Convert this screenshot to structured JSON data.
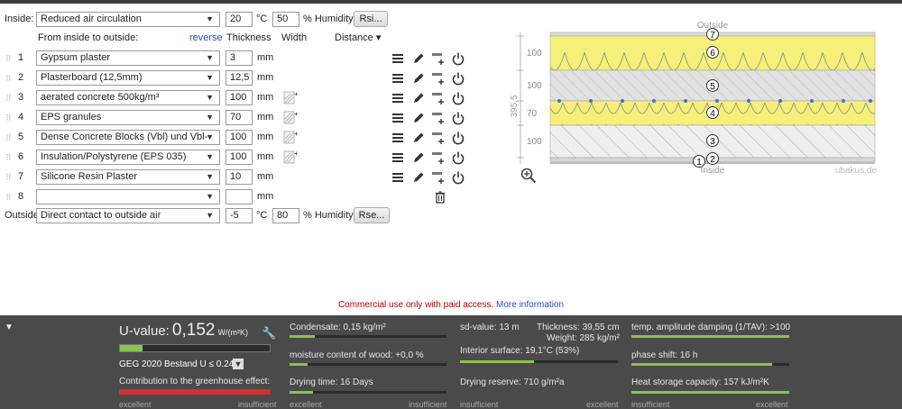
{
  "inside": {
    "label": "Inside:",
    "condition": "Reduced air circulation",
    "temp": "20",
    "temp_unit": "°C",
    "humidity": "50",
    "humidity_unit": "% Humidity",
    "rsi_button": "Rsi..."
  },
  "header": {
    "from_label": "From inside to outside:",
    "reverse_link": "reverse",
    "thickness": "Thickness",
    "width": "Width",
    "distance": "Distance ▾"
  },
  "layers": [
    {
      "num": "1",
      "material": "Gypsum plaster",
      "thickness": "3",
      "unit": "mm",
      "inhomogeneous": false
    },
    {
      "num": "2",
      "material": "Plasterboard (12,5mm)",
      "thickness": "12,5",
      "unit": "mm",
      "inhomogeneous": false
    },
    {
      "num": "3",
      "material": "aerated concrete 500kg/m³",
      "thickness": "100",
      "unit": "mm",
      "inhomogeneous": true
    },
    {
      "num": "4",
      "material": "EPS granules",
      "thickness": "70",
      "unit": "mm",
      "inhomogeneous": true
    },
    {
      "num": "5",
      "material": "Dense Concrete Blocks (Vbl) und Vbl-",
      "thickness": "100",
      "unit": "mm",
      "inhomogeneous": true
    },
    {
      "num": "6",
      "material": "Insulation/Polystyrene (EPS 035)",
      "thickness": "100",
      "unit": "mm",
      "inhomogeneous": true
    },
    {
      "num": "7",
      "material": "Silicone Resin Plaster",
      "thickness": "10",
      "unit": "mm",
      "inhomogeneous": false
    },
    {
      "num": "8",
      "material": "",
      "thickness": "",
      "unit": "mm",
      "inhomogeneous": false
    }
  ],
  "outside": {
    "label": "Outside",
    "condition": "Direct contact to outside air",
    "temp": "-5",
    "temp_unit": "°C",
    "humidity": "80",
    "humidity_unit": "% Humidity",
    "rse_button": "Rse..."
  },
  "diagram": {
    "outside_label": "Outside",
    "inside_label": "Inside",
    "watermark": "ubakus.de",
    "total_label": "395,5",
    "dim_labels": [
      "100",
      "100",
      "70",
      "100"
    ],
    "layer_markers": [
      "7",
      "6",
      "5",
      "4",
      "3",
      "2",
      "1"
    ]
  },
  "commercial": {
    "text": "Commercial use only with paid access.",
    "link": "More information"
  },
  "results": {
    "u_label": "U-value:",
    "u_value": "0,152",
    "u_unit": "W/(m²K)",
    "u_fraction": 0.15,
    "standard": "GEG 2020 Bestand U ≤ 0.24",
    "greenhouse": "Contribution to the greenhouse effect:",
    "scale_good": "excellent",
    "scale_bad": "insufficient",
    "condensate": "Condensate: 0,15 kg/m²",
    "moisture": "moisture content of wood: +0,0 %",
    "drying": "Drying time: 16 Days",
    "sd_value": "sd-value: 13 m",
    "thickness": "Thickness: 39,55 cm",
    "weight": "Weight: 285 kg/m²",
    "interior_surface": "Interior surface: 19,1°C (53%)",
    "drying_reserve": "Drying reserve: 710 g/m²a",
    "temp_damping": "temp. amplitude damping (1/TAV): >100",
    "phase_shift": "phase shift: 16 h",
    "heat_storage": "Heat storage capacity: 157 kJ/m²K",
    "colors": {
      "good": "#8bc34a",
      "bad": "#d32f2f",
      "accent": "#2a4bc8"
    }
  }
}
